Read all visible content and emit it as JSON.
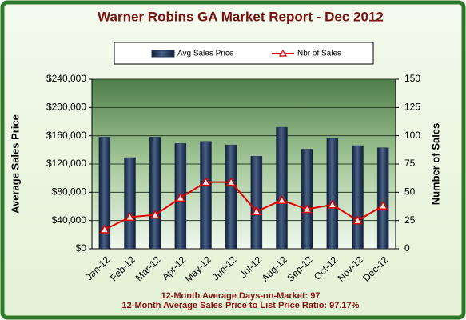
{
  "chart_data": {
    "type": "bar",
    "title": "Warner Robins GA Market Report - Dec 2012",
    "ylabel": "Average Sales Price",
    "y2label": "Number of Sales",
    "annotations": [
      "12-Month Average Days-on-Market: 97",
      "12-Month Average Sales Price to List Price Ratio: 97.17%"
    ],
    "categories": [
      "Jan-12",
      "Feb-12",
      "Mar-12",
      "Apr-12",
      "May-12",
      "Jun-12",
      "Jul-12",
      "Aug-12",
      "Sep-12",
      "Oct-12",
      "Nov-12",
      "Dec-12"
    ],
    "series": [
      {
        "name": "Avg Sales Price",
        "type": "bar",
        "color": "#1f3357",
        "values": [
          158000,
          129000,
          158000,
          149000,
          152000,
          147000,
          131000,
          172000,
          141000,
          156000,
          146000,
          143000
        ]
      },
      {
        "name": "Nbr of Sales",
        "type": "line",
        "axis": "y2",
        "color": "#e00000",
        "values": [
          17,
          28,
          30,
          45,
          59,
          59,
          33,
          43,
          35,
          39,
          25,
          38
        ]
      }
    ],
    "ylim": [
      0,
      240000
    ],
    "yticks": [
      {
        "value": 0,
        "label": "$0"
      },
      {
        "value": 40000,
        "label": "$40,000"
      },
      {
        "value": 80000,
        "label": "$80,000"
      },
      {
        "value": 120000,
        "label": "$120,000"
      },
      {
        "value": 160000,
        "label": "$160,000"
      },
      {
        "value": 200000,
        "label": "$200,000"
      },
      {
        "value": 240000,
        "label": "$240,000"
      }
    ],
    "y2lim": [
      0,
      150
    ],
    "y2ticks": [
      0,
      25,
      50,
      75,
      100,
      125,
      150
    ],
    "grid": true,
    "legend": "top"
  }
}
